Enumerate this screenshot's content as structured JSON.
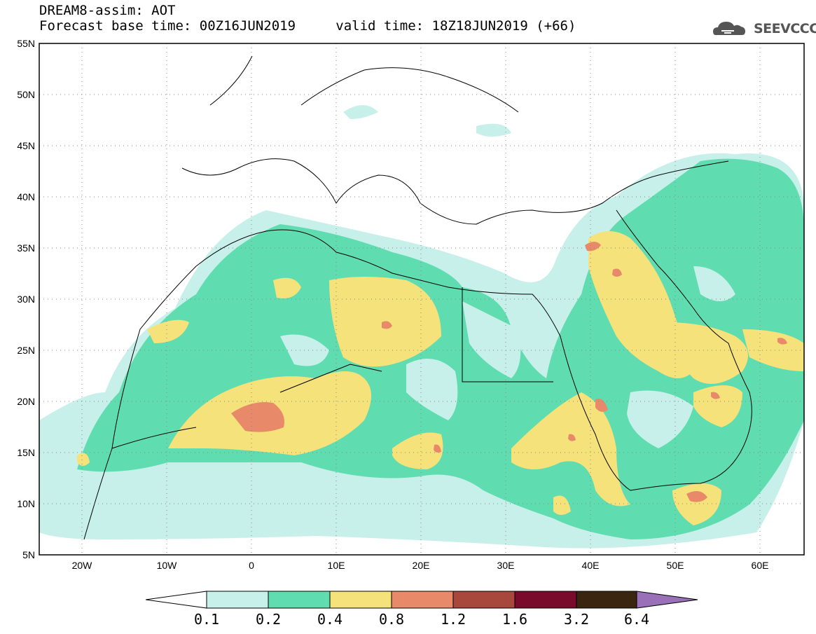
{
  "header": {
    "title": "DREAM8-assim: AOT",
    "base_time": "Forecast base time: 00Z16JUN2019",
    "valid_time": "valid time: 18Z18JUN2019 (+66)"
  },
  "logo": {
    "text": "SEEVCCC",
    "icon": "cloud-icon"
  },
  "axes": {
    "lat_labels": [
      "55N",
      "50N",
      "45N",
      "40N",
      "35N",
      "30N",
      "25N",
      "20N",
      "15N",
      "10N",
      "5N"
    ],
    "lon_labels": [
      "20W",
      "10W",
      "0",
      "10E",
      "20E",
      "30E",
      "40E",
      "50E",
      "60E"
    ]
  },
  "colorbar": {
    "labels": [
      "0.1",
      "0.2",
      "0.4",
      "0.8",
      "1.2",
      "1.6",
      "3.2",
      "6.4"
    ],
    "colors": [
      "#c8f0ea",
      "#5fdcb0",
      "#f5e27a",
      "#e8896a",
      "#a8483c",
      "#7a0a2c",
      "#3a2510",
      "#9a70b8"
    ]
  }
}
